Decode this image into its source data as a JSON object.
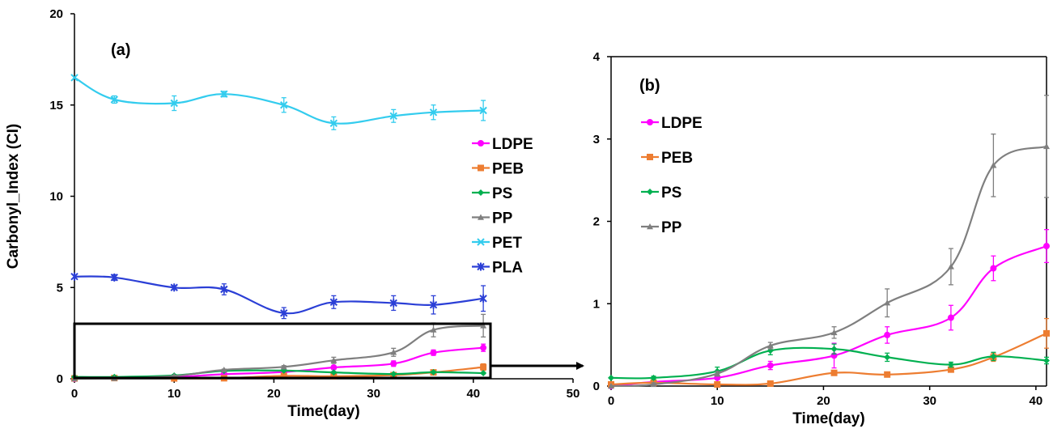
{
  "chart_data": [
    {
      "panel_label": "(a)",
      "type": "line",
      "xlabel": "Time(day)",
      "ylabel": "Carbonyl_Index (CI)",
      "xlim": [
        0,
        50
      ],
      "ylim": [
        0,
        20
      ],
      "xticks": [
        0,
        10,
        20,
        30,
        40,
        50
      ],
      "yticks": [
        0,
        5,
        10,
        15,
        20
      ],
      "legend_position": "right",
      "grid": false,
      "x": [
        0,
        4,
        10,
        15,
        21,
        26,
        32,
        36,
        41
      ],
      "series": [
        {
          "name": "LDPE",
          "color": "#ff00ff",
          "marker": "circle",
          "values": [
            0.0,
            0.05,
            0.1,
            0.25,
            0.37,
            0.62,
            0.83,
            1.43,
            1.7
          ],
          "errors": [
            0.0,
            0.02,
            0.05,
            0.05,
            0.15,
            0.1,
            0.15,
            0.15,
            0.2
          ]
        },
        {
          "name": "PEB",
          "color": "#ed7d31",
          "marker": "square",
          "values": [
            0.02,
            0.04,
            0.02,
            0.03,
            0.16,
            0.14,
            0.2,
            0.35,
            0.64
          ],
          "errors": [
            0.0,
            0.01,
            0.01,
            0.01,
            0.03,
            0.02,
            0.03,
            0.05,
            0.18
          ]
        },
        {
          "name": "PS",
          "color": "#00b050",
          "marker": "diamond",
          "values": [
            0.1,
            0.1,
            0.18,
            0.43,
            0.45,
            0.35,
            0.26,
            0.36,
            0.31
          ],
          "errors": [
            0.0,
            0.02,
            0.05,
            0.05,
            0.06,
            0.05,
            0.03,
            0.05,
            0.04
          ]
        },
        {
          "name": "PP",
          "color": "#7f7f7f",
          "marker": "triangle",
          "values": [
            0.0,
            0.02,
            0.15,
            0.49,
            0.65,
            1.01,
            1.45,
            2.68,
            2.91
          ],
          "errors": [
            0.0,
            0.02,
            0.03,
            0.04,
            0.07,
            0.17,
            0.22,
            0.38,
            0.62
          ]
        },
        {
          "name": "PET",
          "color": "#33ccee",
          "marker": "x",
          "values": [
            16.5,
            15.3,
            15.1,
            15.6,
            15.0,
            14.0,
            14.4,
            14.6,
            14.7
          ],
          "errors": [
            0.0,
            0.2,
            0.4,
            0.15,
            0.4,
            0.35,
            0.35,
            0.4,
            0.55
          ]
        },
        {
          "name": "PLA",
          "color": "#2b3fd6",
          "marker": "star",
          "values": [
            5.6,
            5.55,
            5.0,
            4.9,
            3.6,
            4.2,
            4.15,
            4.05,
            4.4
          ],
          "errors": [
            0.0,
            0.15,
            0.1,
            0.3,
            0.3,
            0.35,
            0.4,
            0.5,
            0.7
          ]
        }
      ]
    },
    {
      "panel_label": "(b)",
      "type": "line",
      "xlabel": "Time(day)",
      "ylabel": "",
      "xlim": [
        0,
        41
      ],
      "ylim": [
        0,
        4
      ],
      "xticks": [
        0,
        10,
        20,
        30,
        40
      ],
      "yticks": [
        0,
        1,
        2,
        3,
        4
      ],
      "legend_position": "top-left",
      "grid": false,
      "x": [
        0,
        4,
        10,
        15,
        21,
        26,
        32,
        36,
        41
      ],
      "series": [
        {
          "name": "LDPE",
          "color": "#ff00ff",
          "marker": "circle",
          "values": [
            0.0,
            0.05,
            0.1,
            0.25,
            0.37,
            0.62,
            0.83,
            1.43,
            1.7
          ],
          "errors": [
            0.0,
            0.02,
            0.05,
            0.05,
            0.15,
            0.1,
            0.15,
            0.15,
            0.2
          ]
        },
        {
          "name": "PEB",
          "color": "#ed7d31",
          "marker": "square",
          "values": [
            0.02,
            0.04,
            0.02,
            0.03,
            0.16,
            0.14,
            0.2,
            0.35,
            0.64
          ],
          "errors": [
            0.0,
            0.01,
            0.01,
            0.01,
            0.03,
            0.02,
            0.03,
            0.05,
            0.18
          ]
        },
        {
          "name": "PS",
          "color": "#00b050",
          "marker": "diamond",
          "values": [
            0.1,
            0.1,
            0.18,
            0.43,
            0.45,
            0.35,
            0.26,
            0.36,
            0.31
          ],
          "errors": [
            0.0,
            0.02,
            0.05,
            0.05,
            0.06,
            0.05,
            0.03,
            0.05,
            0.04
          ]
        },
        {
          "name": "PP",
          "color": "#7f7f7f",
          "marker": "triangle",
          "values": [
            0.0,
            0.02,
            0.15,
            0.49,
            0.65,
            1.01,
            1.45,
            2.68,
            2.91
          ],
          "errors": [
            0.0,
            0.02,
            0.03,
            0.04,
            0.07,
            0.17,
            0.22,
            0.38,
            0.62
          ]
        }
      ]
    }
  ]
}
